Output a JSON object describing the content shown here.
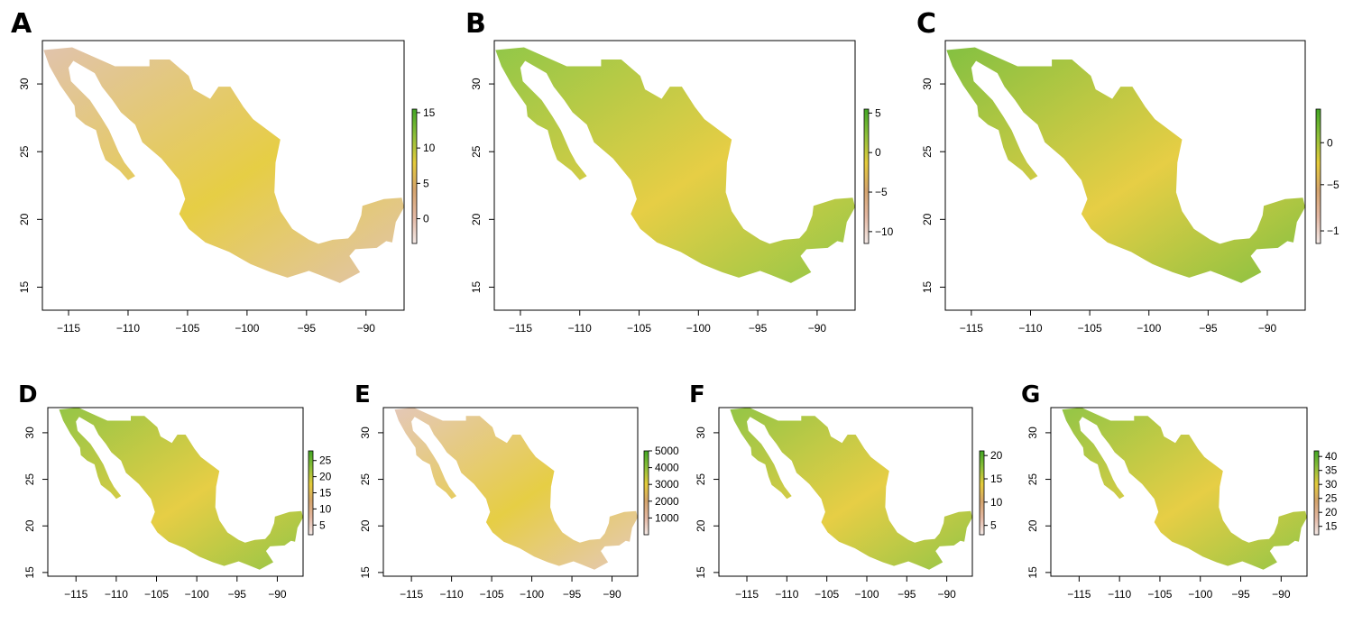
{
  "figure": {
    "panels": [
      {
        "letter": "A",
        "x_ticks": [
          "−115",
          "−110",
          "−105",
          "−100",
          "−95",
          "−90"
        ],
        "y_ticks": [
          "15",
          "20",
          "25",
          "30"
        ],
        "legend_ticks": [
          "0",
          "5",
          "10",
          "15"
        ],
        "color_ramp": [
          "#f3e9e6",
          "#e4b8a3",
          "#d5a46c",
          "#e5cb3b",
          "#8fc03a",
          "#42a624"
        ],
        "map_fill": "#dfc0a8"
      },
      {
        "letter": "B",
        "x_ticks": [
          "−115",
          "−110",
          "−105",
          "−100",
          "−95",
          "−90"
        ],
        "y_ticks": [
          "15",
          "20",
          "25",
          "30"
        ],
        "legend_ticks": [
          "−10",
          "−5",
          "0",
          "5"
        ],
        "color_ramp": [
          "#f3e9e6",
          "#e4b8a3",
          "#d5a46c",
          "#e5cb3b",
          "#8fc03a",
          "#42a624"
        ],
        "map_fill": "#8cc43e"
      },
      {
        "letter": "C",
        "x_ticks": [
          "−115",
          "−110",
          "−105",
          "−100",
          "−95",
          "−90"
        ],
        "y_ticks": [
          "15",
          "20",
          "25",
          "30"
        ],
        "legend_ticks": [
          "−1",
          "−5",
          "0"
        ],
        "color_ramp": [
          "#f3e9e6",
          "#e4b8a3",
          "#d5a46c",
          "#e5cb3b",
          "#8fc03a",
          "#42a624"
        ],
        "map_fill": "#7dbd37"
      },
      {
        "letter": "D",
        "x_ticks": [
          "−115",
          "−110",
          "−105",
          "−100",
          "−95",
          "−90"
        ],
        "y_ticks": [
          "15",
          "20",
          "25",
          "30"
        ],
        "legend_ticks": [
          "5",
          "10",
          "15",
          "20",
          "25"
        ],
        "color_ramp": [
          "#f3e9e6",
          "#e4b8a3",
          "#d5a46c",
          "#e5cb3b",
          "#8fc03a",
          "#42a624"
        ],
        "map_fill": "#8fc23c"
      },
      {
        "letter": "E",
        "x_ticks": [
          "−115",
          "−110",
          "−105",
          "−100",
          "−95",
          "−90"
        ],
        "y_ticks": [
          "15",
          "20",
          "25",
          "30"
        ],
        "legend_ticks": [
          "1000",
          "2000",
          "3000",
          "4000",
          "5000"
        ],
        "color_ramp": [
          "#f3e9e6",
          "#e4b8a3",
          "#d5a46c",
          "#e5cb3b",
          "#8fc03a",
          "#42a624"
        ],
        "map_fill": "#e3c5b4"
      },
      {
        "letter": "F",
        "x_ticks": [
          "−115",
          "−110",
          "−105",
          "−100",
          "−95",
          "−90"
        ],
        "y_ticks": [
          "15",
          "20",
          "25",
          "30"
        ],
        "legend_ticks": [
          "5",
          "10",
          "15",
          "20"
        ],
        "color_ramp": [
          "#f3e9e6",
          "#e4b8a3",
          "#d5a46c",
          "#e5cb3b",
          "#8fc03a",
          "#42a624"
        ],
        "map_fill": "#8ec23d"
      },
      {
        "letter": "G",
        "x_ticks": [
          "−115",
          "−110",
          "−105",
          "−100",
          "−95",
          "−90"
        ],
        "y_ticks": [
          "15",
          "20",
          "25",
          "30"
        ],
        "legend_ticks": [
          "15",
          "20",
          "25",
          "30",
          "35",
          "40"
        ],
        "color_ramp": [
          "#f3e9e6",
          "#e4b8a3",
          "#d5a46c",
          "#e5cb3b",
          "#8fc03a",
          "#42a624"
        ],
        "map_fill": "#8dc23c"
      }
    ]
  }
}
